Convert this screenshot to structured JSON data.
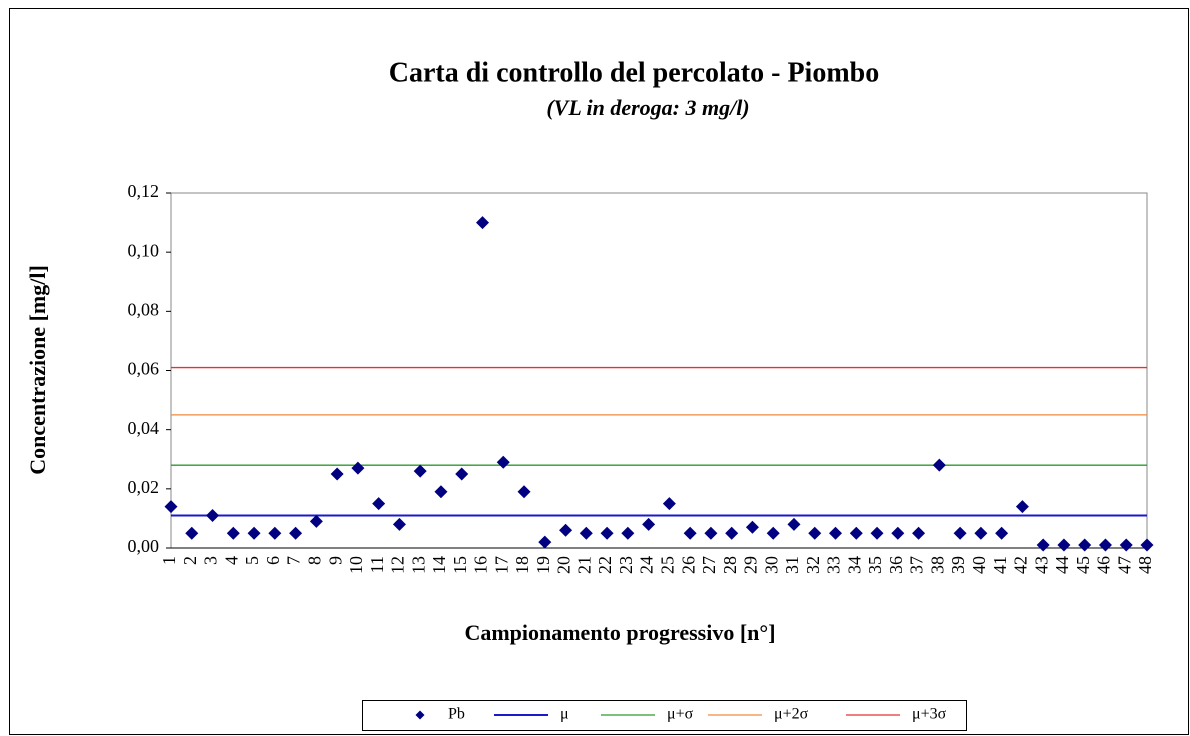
{
  "chart_data": {
    "type": "scatter",
    "title": "Carta di controllo del percolato - Piombo",
    "subtitle": "(VL in deroga: 3 mg/l)",
    "x_label": "Campionamento progressivo [n°]",
    "y_label": "Concentrazione [mg/l]",
    "categories": [
      "1",
      "2",
      "3",
      "4",
      "5",
      "6",
      "7",
      "8",
      "9",
      "10",
      "11",
      "12",
      "13",
      "14",
      "15",
      "16",
      "17",
      "18",
      "19",
      "20",
      "21",
      "22",
      "23",
      "24",
      "25",
      "26",
      "27",
      "28",
      "29",
      "30",
      "31",
      "32",
      "33",
      "34",
      "35",
      "36",
      "37",
      "38",
      "39",
      "40",
      "41",
      "42",
      "43",
      "44",
      "45",
      "46",
      "47",
      "48"
    ],
    "series": [
      {
        "name": "Pb",
        "color": "#000080",
        "marker": "diamond",
        "values": [
          0.014,
          0.005,
          0.011,
          0.005,
          0.005,
          0.005,
          0.005,
          0.009,
          0.025,
          0.027,
          0.015,
          0.008,
          0.026,
          0.019,
          0.025,
          0.11,
          0.029,
          0.019,
          0.002,
          0.006,
          0.005,
          0.005,
          0.005,
          0.008,
          0.015,
          0.005,
          0.005,
          0.005,
          0.007,
          0.005,
          0.008,
          0.005,
          0.005,
          0.005,
          0.005,
          0.005,
          0.005,
          0.028,
          0.005,
          0.005,
          0.005,
          0.014,
          0.001,
          0.001,
          0.001,
          0.001,
          0.001,
          0.001
        ]
      }
    ],
    "reference_lines": [
      {
        "name": "μ",
        "color": "#1a1acc",
        "value": 0.011
      },
      {
        "name": "μ+σ",
        "color": "#2e9a2e",
        "value": 0.028
      },
      {
        "name": "μ+2σ",
        "color": "#f08a3c",
        "value": 0.045
      },
      {
        "name": "μ+3σ",
        "color": "#e83030",
        "value": 0.061
      }
    ],
    "ylim": [
      0,
      0.12
    ],
    "yticks": [
      {
        "value": 0,
        "label": "0,00"
      },
      {
        "value": 0.02,
        "label": "0,02"
      },
      {
        "value": 0.04,
        "label": "0,04"
      },
      {
        "value": 0.06,
        "label": "0,06"
      },
      {
        "value": 0.08,
        "label": "0,08"
      },
      {
        "value": 0.1,
        "label": "0,10"
      },
      {
        "value": 0.12,
        "label": "0,12"
      }
    ],
    "legend": "bottom"
  }
}
